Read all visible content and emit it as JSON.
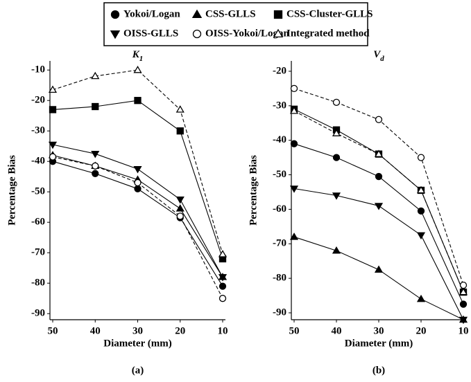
{
  "legend": {
    "position": "top"
  },
  "chart_data": [
    {
      "type": "line",
      "title": "K",
      "title_subscript": "1",
      "caption": "(a)",
      "x_label": "Diameter (mm)",
      "y_label": "Percentage Bias",
      "categories": [
        "50",
        "40",
        "30",
        "20",
        "10"
      ],
      "ylim": [
        -92,
        -7
      ],
      "yticks": [
        -10,
        -20,
        -30,
        -40,
        -50,
        -60,
        -70,
        -80,
        -90
      ],
      "series": [
        {
          "name": "Yokoi/Logan",
          "color": "#000000",
          "marker": "circle",
          "filled": true,
          "dashed": false,
          "values": [
            -40,
            -44,
            -49,
            -58.5,
            -81
          ]
        },
        {
          "name": "CSS-GLLS",
          "color": "#000000",
          "marker": "triangle",
          "filled": true,
          "dashed": false,
          "values": [
            -38,
            -41.5,
            -46,
            -55.5,
            -78
          ]
        },
        {
          "name": "CSS-Cluster-GLLS",
          "color": "#000000",
          "marker": "square",
          "filled": true,
          "dashed": false,
          "values": [
            -23,
            -22,
            -20,
            -30,
            -72
          ]
        },
        {
          "name": "OISS-GLLS",
          "color": "#000000",
          "marker": "triangle-down",
          "filled": true,
          "dashed": false,
          "values": [
            -34.5,
            -37.5,
            -42.5,
            -52.5,
            -78
          ]
        },
        {
          "name": "OISS-Yokoi/Logan",
          "color": "#000000",
          "marker": "circle",
          "filled": false,
          "dashed": true,
          "values": [
            -38.5,
            -41.5,
            -47,
            -58,
            -85
          ]
        },
        {
          "name": "Integrated method",
          "color": "#000000",
          "marker": "triangle",
          "filled": false,
          "dashed": true,
          "values": [
            -16.5,
            -12,
            -10,
            -23,
            -70.5
          ]
        }
      ]
    },
    {
      "type": "line",
      "title": "V",
      "title_subscript": "d",
      "caption": "(b)",
      "x_label": "Diameter (mm)",
      "y_label": "Percentage Bias",
      "categories": [
        "50",
        "40",
        "30",
        "20",
        "10"
      ],
      "ylim": [
        -92,
        -17
      ],
      "yticks": [
        -20,
        -30,
        -40,
        -50,
        -60,
        -70,
        -80,
        -90
      ],
      "series": [
        {
          "name": "Yokoi/Logan",
          "color": "#000000",
          "marker": "circle",
          "filled": true,
          "dashed": false,
          "values": [
            -41,
            -45,
            -50.5,
            -60.5,
            -87.5
          ]
        },
        {
          "name": "CSS-GLLS",
          "color": "#000000",
          "marker": "triangle",
          "filled": true,
          "dashed": false,
          "values": [
            -68,
            -72,
            -77.5,
            -86,
            -92
          ]
        },
        {
          "name": "CSS-Cluster-GLLS",
          "color": "#000000",
          "marker": "square",
          "filled": true,
          "dashed": false,
          "values": [
            -31,
            -37,
            -44,
            -54.5,
            -84
          ]
        },
        {
          "name": "OISS-GLLS",
          "color": "#000000",
          "marker": "triangle-down",
          "filled": true,
          "dashed": false,
          "values": [
            -54,
            -56,
            -59,
            -67.5,
            -92
          ]
        },
        {
          "name": "OISS-Yokoi/Logan",
          "color": "#000000",
          "marker": "circle",
          "filled": false,
          "dashed": true,
          "values": [
            -25,
            -29,
            -34,
            -45,
            -82
          ]
        },
        {
          "name": "Integrated method",
          "color": "#000000",
          "marker": "triangle",
          "filled": false,
          "dashed": true,
          "values": [
            -31.5,
            -38,
            -44,
            -54.5,
            -84
          ]
        }
      ]
    }
  ]
}
